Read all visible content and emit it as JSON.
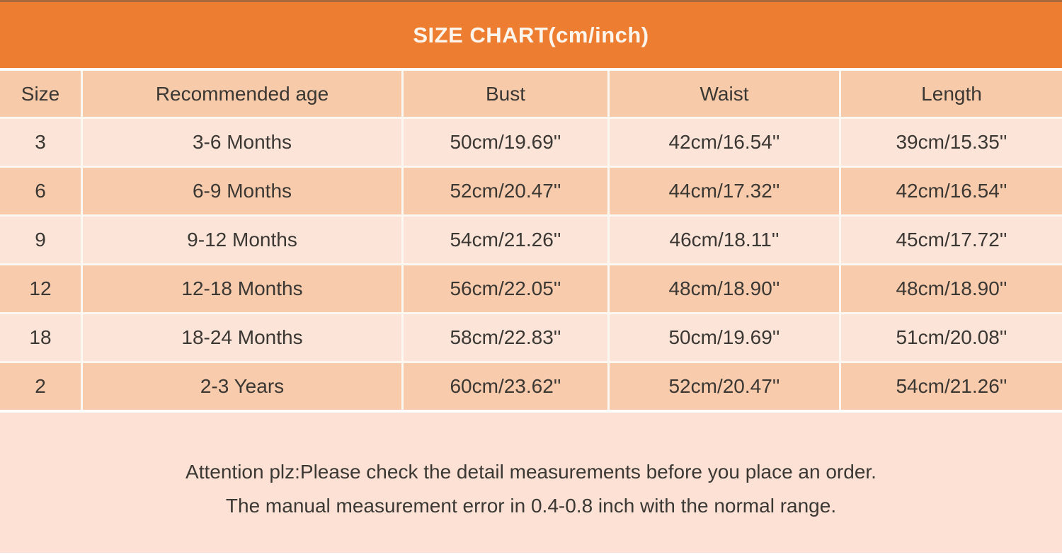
{
  "title": "SIZE CHART(cm/inch)",
  "table": {
    "headers": [
      "Size",
      "Recommended age",
      "Bust",
      "Waist",
      "Length"
    ],
    "rows": [
      [
        "3",
        "3-6 Months",
        "50cm/19.69''",
        "42cm/16.54''",
        "39cm/15.35''"
      ],
      [
        "6",
        "6-9 Months",
        "52cm/20.47''",
        "44cm/17.32''",
        "42cm/16.54''"
      ],
      [
        "9",
        "9-12 Months",
        "54cm/21.26''",
        "46cm/18.11''",
        "45cm/17.72''"
      ],
      [
        "12",
        "12-18 Months",
        "56cm/22.05''",
        "48cm/18.90''",
        "48cm/18.90''"
      ],
      [
        "18",
        "18-24 Months",
        "58cm/22.83''",
        "50cm/19.69''",
        "51cm/20.08''"
      ],
      [
        "2",
        "2-3 Years",
        "60cm/23.62''",
        "52cm/20.47''",
        "54cm/21.26''"
      ]
    ]
  },
  "note": {
    "line1": "Attention plz:Please check the detail measurements before you place an order.",
    "line2": "The manual measurement error in 0.4-0.8 inch with the normal range."
  },
  "colors": {
    "orange": "#ED7D31",
    "topstrip": "#A7693D",
    "title_text": "#FDF5EC",
    "row_head": "#F7CAAA",
    "row_light": "#FCE4D8",
    "row_dark": "#F7CBAC",
    "note_bg": "#FCE1D4",
    "text": "#3B3834"
  }
}
